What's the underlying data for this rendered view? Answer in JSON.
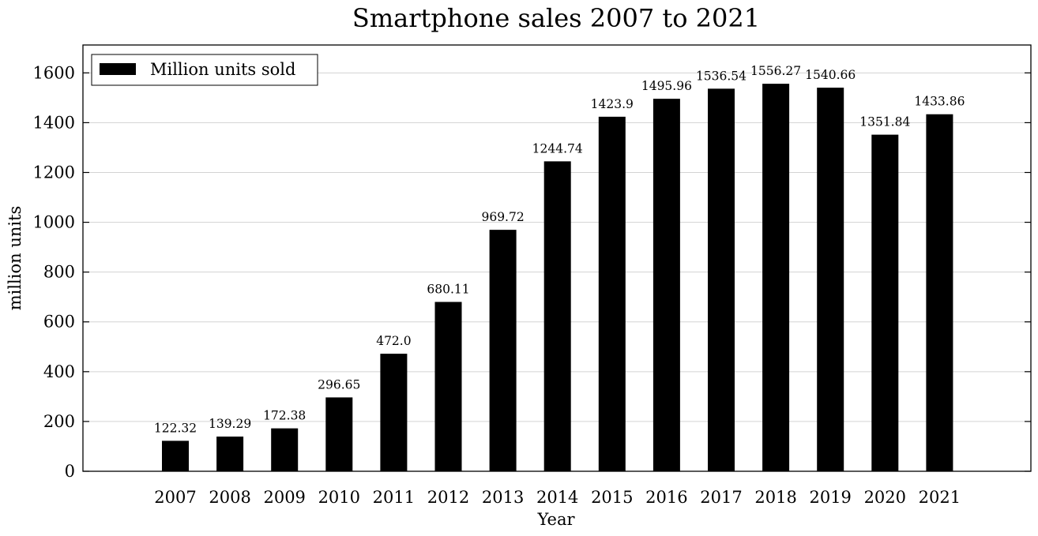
{
  "chart_data": {
    "type": "bar",
    "title": "Smartphone sales 2007 to 2021",
    "xlabel": "Year",
    "ylabel": "million units",
    "categories": [
      "2007",
      "2008",
      "2009",
      "2010",
      "2011",
      "2012",
      "2013",
      "2014",
      "2015",
      "2016",
      "2017",
      "2018",
      "2019",
      "2020",
      "2021"
    ],
    "series": [
      {
        "name": "Million units sold",
        "values": [
          122.32,
          139.29,
          172.38,
          296.65,
          472.0,
          680.11,
          969.72,
          1244.74,
          1423.9,
          1495.96,
          1536.54,
          1556.27,
          1540.66,
          1351.84,
          1433.86
        ],
        "color": "#000000"
      }
    ],
    "data_labels": [
      "122.32",
      "139.29",
      "172.38",
      "296.65",
      "472.0",
      "680.11",
      "969.72",
      "1244.74",
      "1423.9",
      "1495.96",
      "1536.54",
      "1556.27",
      "1540.66",
      "1351.84",
      "1433.86"
    ],
    "yticks": [
      0,
      200,
      400,
      600,
      800,
      1000,
      1200,
      1400,
      1600
    ],
    "ylim": [
      0,
      1712
    ],
    "grid": "horizontal",
    "legend": {
      "position": "top-left",
      "entries": [
        "Million units sold"
      ]
    },
    "colors": {
      "bar": "#000000",
      "grid": "#d3d3d3",
      "axes": "#000000"
    }
  }
}
